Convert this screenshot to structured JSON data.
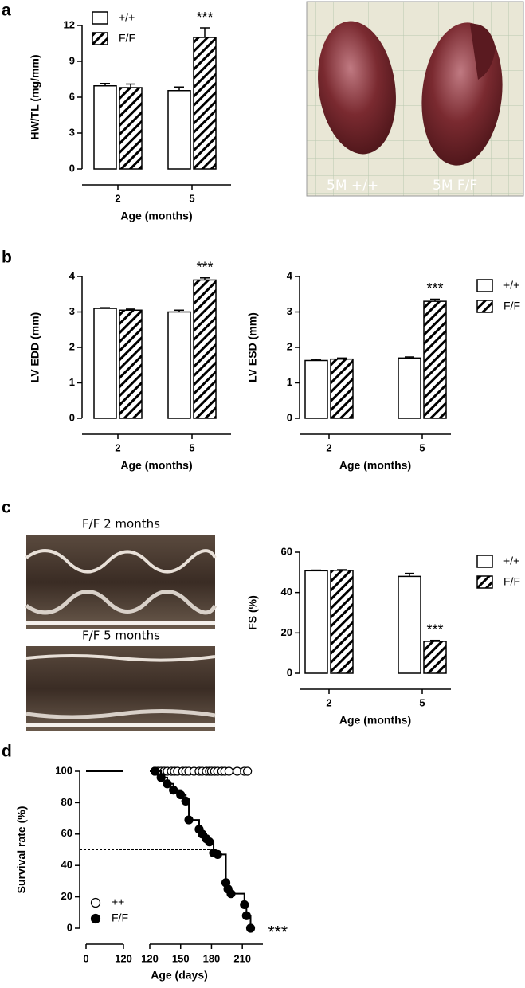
{
  "panels": [
    "a",
    "b",
    "c",
    "d"
  ],
  "images": [
    {
      "labels": [
        "5M +/+",
        "5M F/F"
      ]
    },
    {
      "label": "F/F 2 months"
    },
    {
      "label": "F/F 5 months"
    }
  ],
  "chart_data": [
    {
      "type": "bar",
      "ylabel": "HW/TL (mg/mm)",
      "xlabel": "Age (months)",
      "categories": [
        "2",
        "5"
      ],
      "ylim": [
        0,
        12
      ],
      "yticks": [
        0,
        3,
        6,
        9,
        12
      ],
      "legend": "top-left",
      "annotations": [
        "***"
      ],
      "series": [
        {
          "name": "+/+",
          "color": "#000000",
          "hatch": false,
          "values": [
            6.95,
            6.55
          ],
          "errors": [
            0.2,
            0.3
          ]
        },
        {
          "name": "F/F",
          "color": "#000000",
          "hatch": true,
          "values": [
            6.8,
            11.0
          ],
          "errors": [
            0.3,
            0.8
          ]
        }
      ]
    },
    {
      "type": "bar",
      "ylabel": "LV EDD (mm)",
      "xlabel": "Age (months)",
      "categories": [
        "2",
        "5"
      ],
      "ylim": [
        0,
        4
      ],
      "yticks": [
        0,
        1,
        2,
        3,
        4
      ],
      "annotations": [
        "***"
      ],
      "series": [
        {
          "color": "#000000",
          "hatch": false,
          "values": [
            3.1,
            3.0
          ],
          "errors": [
            0.02,
            0.05
          ]
        },
        {
          "color": "#000000",
          "hatch": true,
          "values": [
            3.05,
            3.9
          ],
          "errors": [
            0.03,
            0.06
          ]
        }
      ]
    },
    {
      "type": "bar",
      "ylabel": "LV ESD (mm)",
      "xlabel": "Age (months)",
      "categories": [
        "2",
        "5"
      ],
      "ylim": [
        0,
        4
      ],
      "yticks": [
        0,
        1,
        2,
        3,
        4
      ],
      "legend": "right",
      "annotations": [
        "***"
      ],
      "series": [
        {
          "name": "+/+",
          "color": "#000000",
          "hatch": false,
          "values": [
            1.63,
            1.7
          ],
          "errors": [
            0.03,
            0.03
          ]
        },
        {
          "name": "F/F",
          "color": "#000000",
          "hatch": true,
          "values": [
            1.67,
            3.3
          ],
          "errors": [
            0.03,
            0.06
          ]
        }
      ]
    },
    {
      "type": "bar",
      "ylabel": "FS (%)",
      "xlabel": "Age (months)",
      "categories": [
        "2",
        "5"
      ],
      "ylim": [
        0,
        60
      ],
      "yticks": [
        0,
        20,
        40,
        60
      ],
      "legend": "right",
      "annotations": [
        "***"
      ],
      "series": [
        {
          "name": "+/+",
          "color": "#000000",
          "hatch": false,
          "values": [
            50.8,
            48
          ],
          "errors": [
            0.3,
            1.5
          ]
        },
        {
          "name": "F/F",
          "color": "#000000",
          "hatch": true,
          "values": [
            51,
            15.8
          ],
          "errors": [
            0.3,
            0.5
          ]
        }
      ]
    },
    {
      "type": "survival",
      "ylabel": "Survival rate (%)",
      "xlabel": "Age (days)",
      "ylim": [
        0,
        100
      ],
      "yticks": [
        0,
        20,
        40,
        60,
        80,
        100
      ],
      "x_segments": [
        {
          "xlim": [
            0,
            120
          ],
          "xticks": [
            0,
            120
          ]
        },
        {
          "xlim": [
            120,
            230
          ],
          "xticks": [
            120,
            150,
            180,
            210
          ]
        }
      ],
      "reference_line": 50,
      "legend": "bottom-left",
      "annotations": [
        "***"
      ],
      "series": [
        {
          "name": "++",
          "marker": "open",
          "color": "#000000",
          "x": [
            125,
            128,
            131,
            134,
            137,
            141,
            144,
            147,
            152,
            155,
            158,
            163,
            168,
            171,
            175,
            178,
            180,
            183,
            186,
            190,
            193,
            197,
            205,
            212,
            215
          ],
          "values": [
            100,
            100,
            100,
            100,
            100,
            100,
            100,
            100,
            100,
            100,
            100,
            100,
            100,
            100,
            100,
            100,
            100,
            100,
            100,
            100,
            100,
            100,
            100,
            100,
            100
          ]
        },
        {
          "name": "F/F",
          "marker": "filled",
          "color": "#000000",
          "x": [
            125,
            131,
            137,
            143,
            150,
            155,
            158,
            168,
            171,
            175,
            178,
            182,
            186,
            194,
            196,
            199,
            212,
            214,
            218
          ],
          "values": [
            100,
            96,
            92,
            88,
            85,
            81,
            69,
            63,
            60,
            57,
            55,
            48,
            47,
            29,
            25,
            22,
            15,
            8,
            0
          ]
        }
      ]
    }
  ]
}
